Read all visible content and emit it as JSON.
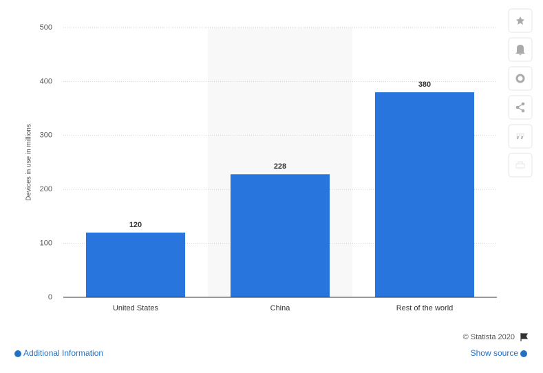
{
  "chart_data": {
    "type": "bar",
    "y_label": "Devices in use in millions",
    "categories": [
      "United States",
      "China",
      "Rest of the world"
    ],
    "values": [
      120,
      228,
      380
    ],
    "color": "#2876dd",
    "ylim": [
      0,
      500
    ],
    "yticks": [
      0,
      100,
      200,
      300,
      400,
      500
    ],
    "grid": true,
    "highlight_index": 1
  },
  "footer": {
    "copyright": "© Statista 2020",
    "additional_info": "Additional Information",
    "show_source": "Show source"
  }
}
